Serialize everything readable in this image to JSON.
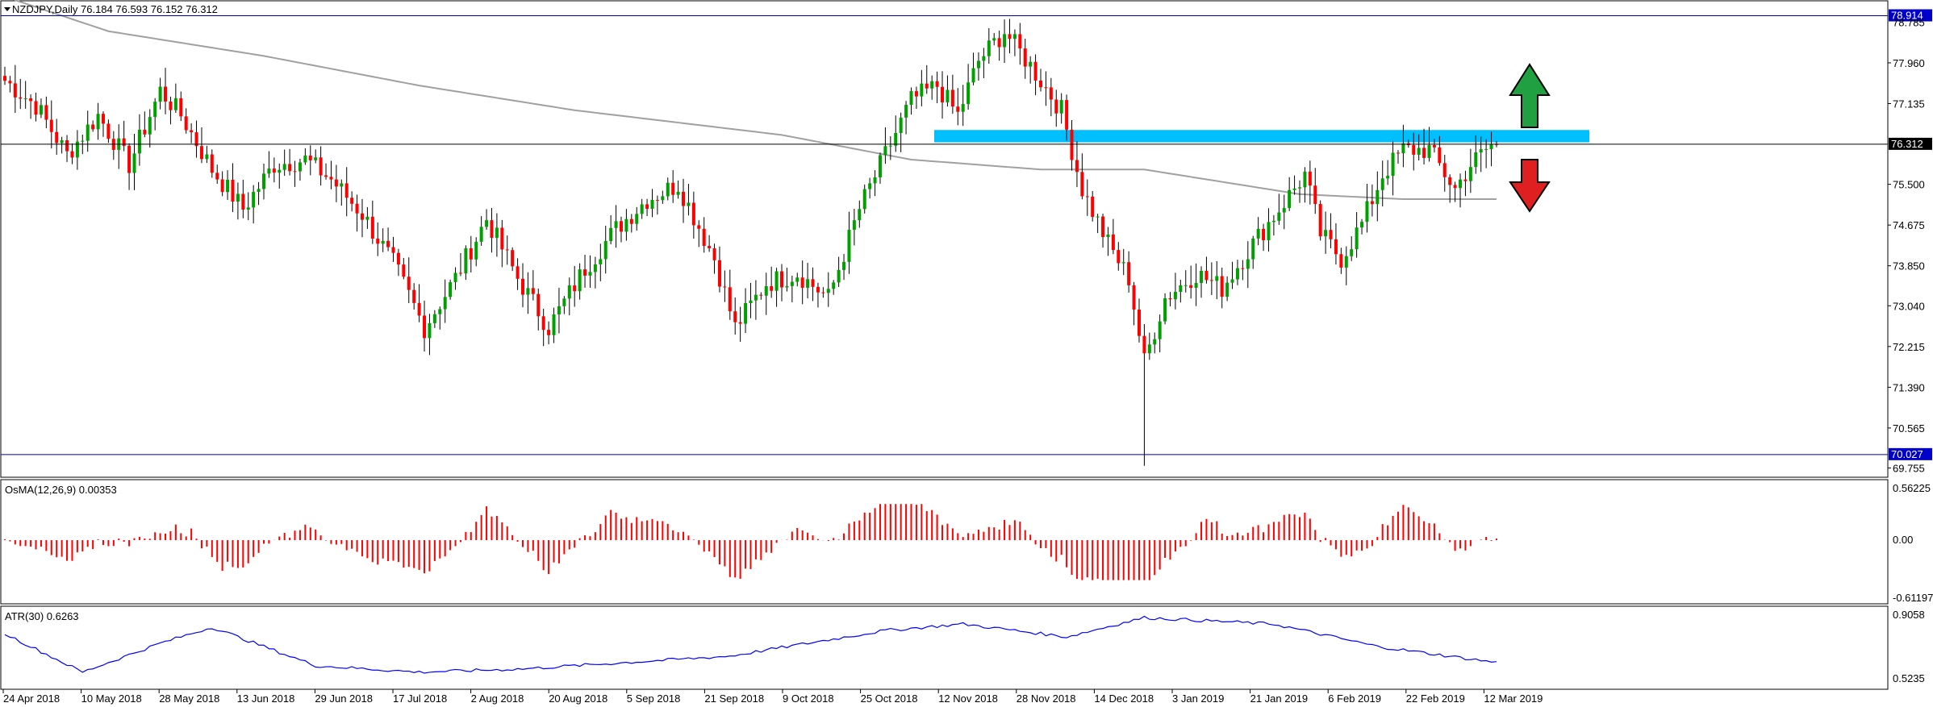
{
  "header": {
    "symbol_label": "NZDJPY,Daily",
    "ohlc": "76.184 76.593 76.152 76.312"
  },
  "colors": {
    "bull": "#00a000",
    "bear": "#ff0000",
    "ma": "#a0a0a0",
    "zone": "#00bfff",
    "level_line": "#0000a0",
    "tag_bg": "#0000c8",
    "atr": "#0000ff",
    "osma": "#ff0000",
    "arrow_up": "#20a040",
    "arrow_down": "#e02020"
  },
  "price_axis": {
    "ticks": [
      "77.960",
      "77.135",
      "75.500",
      "74.675",
      "73.850",
      "73.040",
      "72.215",
      "71.390",
      "70.565",
      "69.755"
    ],
    "top_partial": "78.785"
  },
  "levels": {
    "resistance": "78.914",
    "support": "70.027",
    "current": "76.312"
  },
  "osma": {
    "label": "OsMA(12,26,9) 0.00353",
    "ticks": [
      "0.56225",
      "0.00",
      "-0.61197"
    ]
  },
  "atr": {
    "label": "ATR(30) 0.6263",
    "ticks": [
      "0.9058",
      "0.5235"
    ]
  },
  "time_axis": {
    "labels": [
      "24 Apr 2018",
      "10 May 2018",
      "28 May 2018",
      "13 Jun 2018",
      "29 Jun 2018",
      "17 Jul 2018",
      "2 Aug 2018",
      "20 Aug 2018",
      "5 Sep 2018",
      "21 Sep 2018",
      "9 Oct 2018",
      "25 Oct 2018",
      "12 Nov 2018",
      "28 Nov 2018",
      "14 Dec 2018",
      "3 Jan 2019",
      "21 Jan 2019",
      "6 Feb 2019",
      "22 Feb 2019",
      "12 Mar 2019"
    ]
  },
  "chart_data": {
    "type": "candlestick",
    "ylim": [
      69.6,
      79.2
    ],
    "ma_period_desc": "",
    "zone": {
      "from": 76.35,
      "to": 76.6
    },
    "close_anchors": [
      [
        0,
        77.6
      ],
      [
        6,
        77.1
      ],
      [
        12,
        76.1
      ],
      [
        18,
        76.9
      ],
      [
        24,
        75.9
      ],
      [
        30,
        77.4
      ],
      [
        34,
        76.9
      ],
      [
        40,
        75.8
      ],
      [
        46,
        75.0
      ],
      [
        52,
        75.9
      ],
      [
        58,
        76.0
      ],
      [
        63,
        75.6
      ],
      [
        69,
        74.9
      ],
      [
        75,
        73.9
      ],
      [
        81,
        72.6
      ],
      [
        87,
        73.6
      ],
      [
        93,
        74.8
      ],
      [
        99,
        73.6
      ],
      [
        105,
        72.6
      ],
      [
        112,
        73.8
      ],
      [
        118,
        74.6
      ],
      [
        124,
        75.2
      ],
      [
        130,
        75.5
      ],
      [
        137,
        74.0
      ],
      [
        141,
        72.6
      ],
      [
        147,
        73.5
      ],
      [
        153,
        73.7
      ],
      [
        159,
        73.2
      ],
      [
        165,
        75.0
      ],
      [
        170,
        76.1
      ],
      [
        175,
        77.2
      ],
      [
        180,
        77.5
      ],
      [
        184,
        76.9
      ],
      [
        188,
        78.0
      ],
      [
        193,
        78.6
      ],
      [
        198,
        77.9
      ],
      [
        204,
        77.0
      ],
      [
        208,
        75.4
      ],
      [
        213,
        74.3
      ],
      [
        217,
        73.6
      ],
      [
        220,
        71.9
      ],
      [
        224,
        73.2
      ],
      [
        230,
        73.7
      ],
      [
        235,
        73.4
      ],
      [
        241,
        74.3
      ],
      [
        246,
        75.0
      ],
      [
        251,
        75.7
      ],
      [
        254,
        74.5
      ],
      [
        258,
        74.0
      ],
      [
        262,
        74.7
      ],
      [
        266,
        75.7
      ],
      [
        270,
        76.2
      ],
      [
        275,
        76.2
      ],
      [
        280,
        75.4
      ],
      [
        283,
        75.9
      ],
      [
        288,
        76.4
      ]
    ],
    "ma_anchors": [
      [
        0,
        79.3
      ],
      [
        20,
        78.6
      ],
      [
        50,
        78.1
      ],
      [
        80,
        77.5
      ],
      [
        110,
        77.0
      ],
      [
        150,
        76.5
      ],
      [
        175,
        76.0
      ],
      [
        200,
        75.8
      ],
      [
        220,
        75.8
      ],
      [
        250,
        75.3
      ],
      [
        270,
        75.2
      ],
      [
        288,
        75.2
      ]
    ],
    "bars": 289
  }
}
